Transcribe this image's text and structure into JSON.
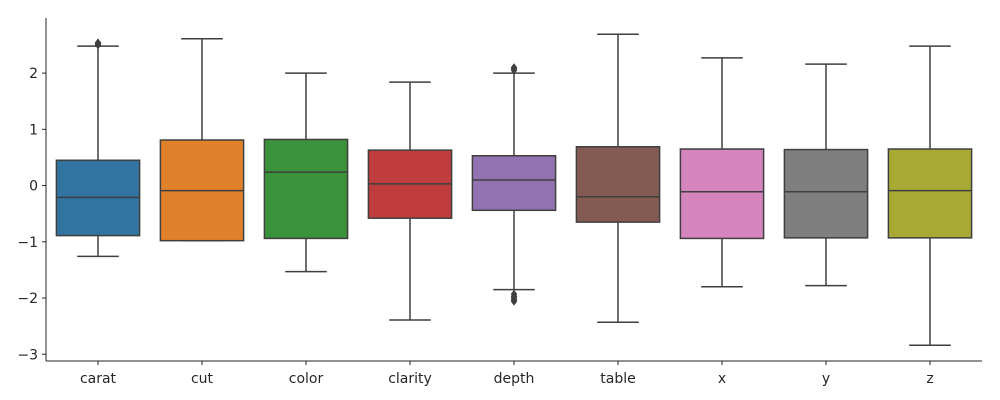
{
  "chart_data": {
    "type": "box",
    "categories": [
      "carat",
      "cut",
      "color",
      "clarity",
      "depth",
      "table",
      "x",
      "y",
      "z"
    ],
    "colors": [
      "#3274a1",
      "#e1812c",
      "#3a923a",
      "#c03d3e",
      "#9372b2",
      "#845b53",
      "#d684bd",
      "#7f7f7f",
      "#a9aa35"
    ],
    "boxes": [
      {
        "whisker_low": -1.26,
        "q1": -0.89,
        "median": -0.21,
        "q3": 0.45,
        "whisker_high": 2.48,
        "outliers": [
          2.5,
          2.52,
          2.54
        ]
      },
      {
        "whisker_low": -0.98,
        "q1": -0.98,
        "median": -0.09,
        "q3": 0.81,
        "whisker_high": 2.61,
        "outliers": []
      },
      {
        "whisker_low": -1.53,
        "q1": -0.94,
        "median": 0.24,
        "q3": 0.82,
        "whisker_high": 2.0,
        "outliers": []
      },
      {
        "whisker_low": -2.39,
        "q1": -0.58,
        "median": 0.03,
        "q3": 0.63,
        "whisker_high": 1.84,
        "outliers": []
      },
      {
        "whisker_low": -1.85,
        "q1": -0.44,
        "median": 0.1,
        "q3": 0.53,
        "whisker_high": 2.0,
        "outliers": [
          2.05,
          2.08,
          2.1,
          -1.93,
          -1.97,
          -2.0,
          -2.03,
          -2.06
        ]
      },
      {
        "whisker_low": -2.43,
        "q1": -0.65,
        "median": -0.2,
        "q3": 0.69,
        "whisker_high": 2.69,
        "outliers": []
      },
      {
        "whisker_low": -1.8,
        "q1": -0.94,
        "median": -0.11,
        "q3": 0.65,
        "whisker_high": 2.27,
        "outliers": []
      },
      {
        "whisker_low": -1.78,
        "q1": -0.93,
        "median": -0.11,
        "q3": 0.64,
        "whisker_high": 2.16,
        "outliers": []
      },
      {
        "whisker_low": -2.84,
        "q1": -0.93,
        "median": -0.09,
        "q3": 0.65,
        "whisker_high": 2.48,
        "outliers": []
      }
    ],
    "yticks": [
      2,
      1,
      0,
      -1,
      -2,
      -3
    ],
    "ytick_labels": [
      "2",
      "1",
      "0",
      "−1",
      "−2",
      "−3"
    ],
    "ylim": [
      -3.12,
      2.98
    ],
    "grid": false,
    "legend": "none",
    "title": "",
    "xlabel": "",
    "ylabel": ""
  }
}
